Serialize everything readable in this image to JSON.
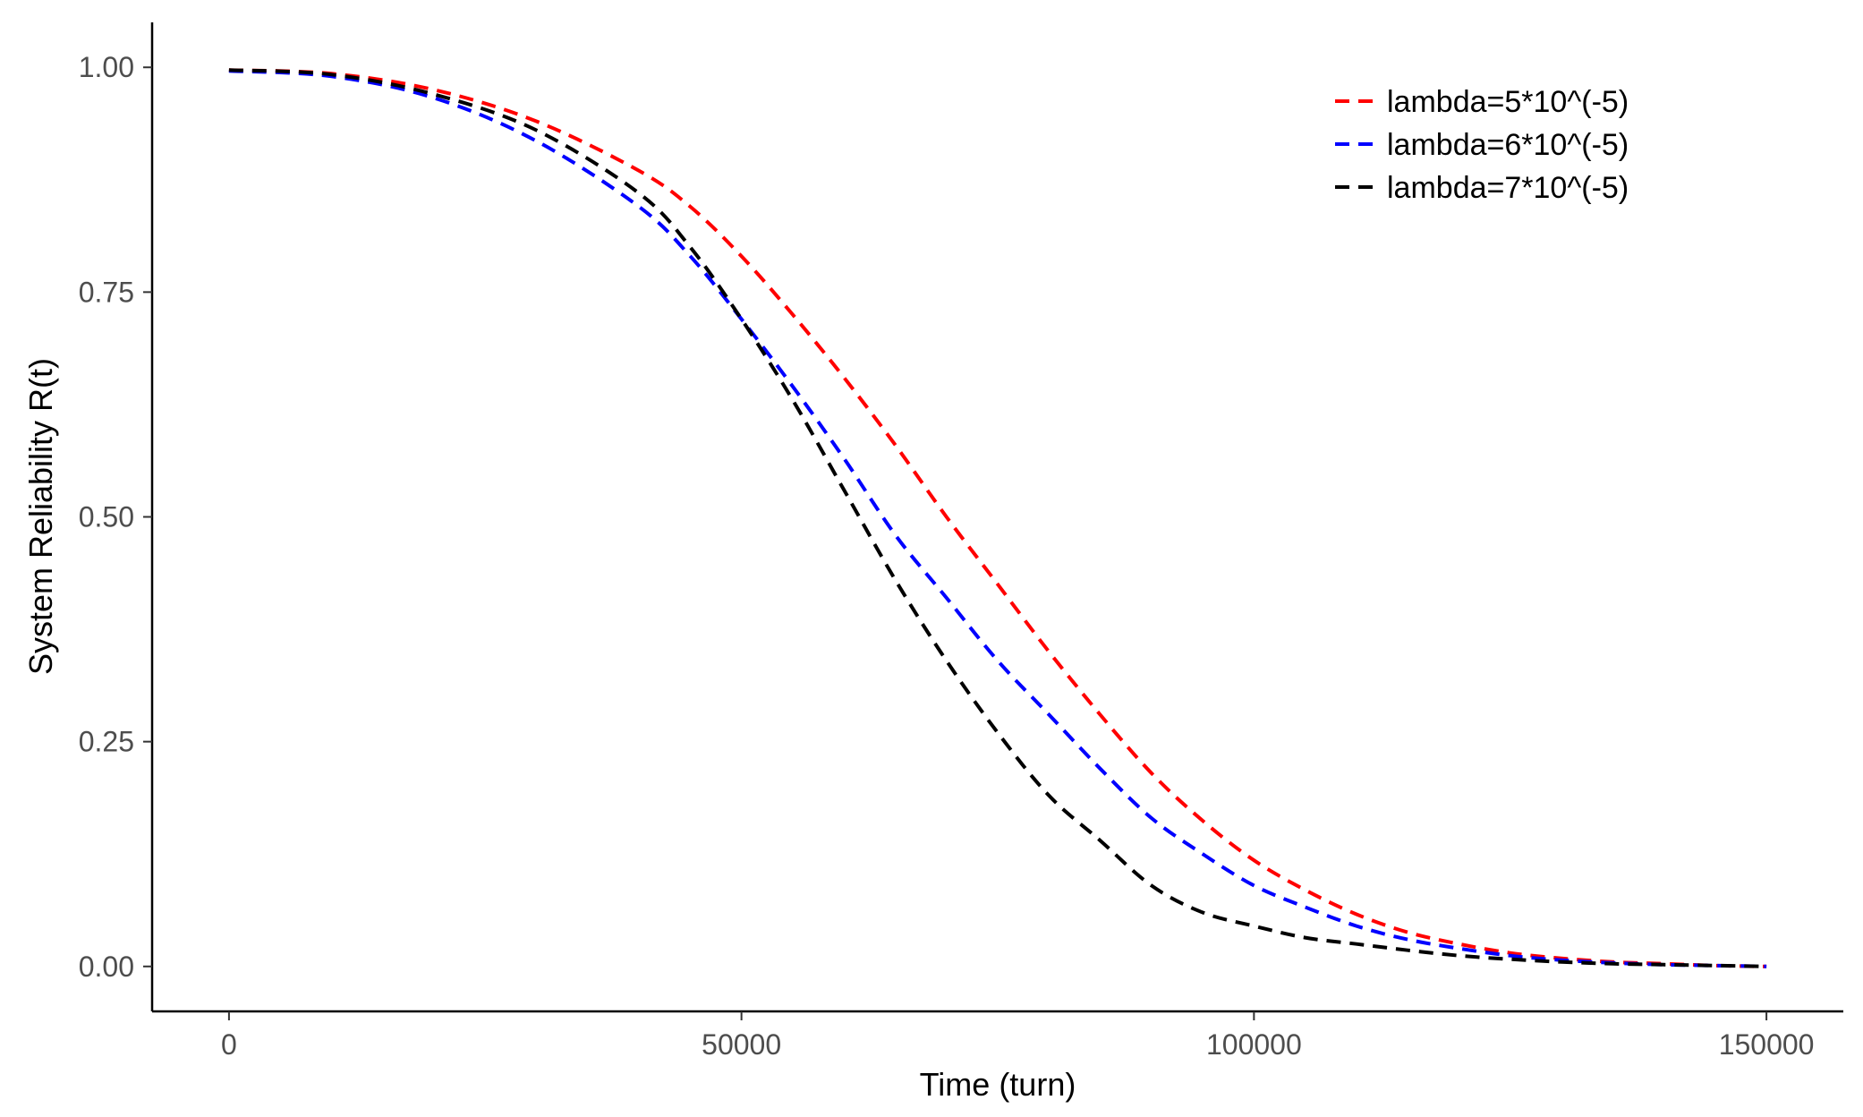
{
  "chart_data": {
    "type": "line",
    "title": "",
    "xlabel": "Time (turn)",
    "ylabel": "System Reliability R(t)",
    "xlim": [
      -7500,
      157500
    ],
    "ylim": [
      -0.05,
      1.05
    ],
    "x_ticks": [
      {
        "value": 0,
        "label": "0"
      },
      {
        "value": 50000,
        "label": "50000"
      },
      {
        "value": 100000,
        "label": "100000"
      },
      {
        "value": 150000,
        "label": "150000"
      }
    ],
    "y_ticks": [
      {
        "value": 0,
        "label": "0.00"
      },
      {
        "value": 0.25,
        "label": "0.25"
      },
      {
        "value": 0.5,
        "label": "0.50"
      },
      {
        "value": 0.75,
        "label": "0.75"
      },
      {
        "value": 1,
        "label": "1.00"
      }
    ],
    "grid": false,
    "legend_position": "top-right",
    "line_style": "dashed",
    "x": [
      0,
      10000,
      20000,
      30000,
      40000,
      45000,
      50000,
      55000,
      60000,
      65000,
      70000,
      75000,
      80000,
      85000,
      90000,
      95000,
      100000,
      105000,
      110000,
      115000,
      120000,
      125000,
      130000,
      135000,
      140000,
      145000,
      150000
    ],
    "series": [
      {
        "name": "lambda=5*10^(-5)",
        "color": "#ff0000",
        "values": [
          0.997,
          0.993,
          0.975,
          0.94,
          0.885,
          0.845,
          0.79,
          0.725,
          0.655,
          0.58,
          0.5,
          0.425,
          0.35,
          0.28,
          0.215,
          0.162,
          0.118,
          0.085,
          0.058,
          0.038,
          0.025,
          0.015,
          0.009,
          0.005,
          0.003,
          0.001,
          0.0
        ]
      },
      {
        "name": "lambda=6*10^(-5)",
        "color": "#0000ff",
        "values": [
          0.996,
          0.99,
          0.966,
          0.918,
          0.845,
          0.79,
          0.72,
          0.645,
          0.565,
          0.48,
          0.41,
          0.34,
          0.28,
          0.22,
          0.165,
          0.125,
          0.09,
          0.066,
          0.045,
          0.03,
          0.02,
          0.012,
          0.007,
          0.004,
          0.002,
          0.001,
          0.0
        ]
      },
      {
        "name": "lambda=7*10^(-5)",
        "color": "#000000",
        "values": [
          0.997,
          0.992,
          0.97,
          0.93,
          0.86,
          0.8,
          0.72,
          0.63,
          0.53,
          0.43,
          0.34,
          0.26,
          0.19,
          0.14,
          0.09,
          0.06,
          0.045,
          0.032,
          0.025,
          0.018,
          0.012,
          0.008,
          0.005,
          0.003,
          0.002,
          0.001,
          0.0
        ]
      }
    ]
  }
}
